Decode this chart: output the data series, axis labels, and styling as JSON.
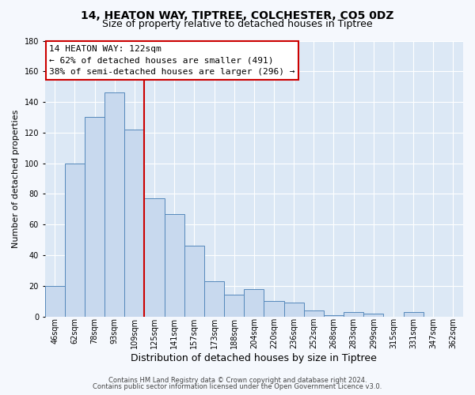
{
  "title": "14, HEATON WAY, TIPTREE, COLCHESTER, CO5 0DZ",
  "subtitle": "Size of property relative to detached houses in Tiptree",
  "xlabel": "Distribution of detached houses by size in Tiptree",
  "ylabel": "Number of detached properties",
  "bar_labels": [
    "46sqm",
    "62sqm",
    "78sqm",
    "93sqm",
    "109sqm",
    "125sqm",
    "141sqm",
    "157sqm",
    "173sqm",
    "188sqm",
    "204sqm",
    "220sqm",
    "236sqm",
    "252sqm",
    "268sqm",
    "283sqm",
    "299sqm",
    "315sqm",
    "331sqm",
    "347sqm",
    "362sqm"
  ],
  "bar_values": [
    20,
    100,
    130,
    146,
    122,
    77,
    67,
    46,
    23,
    14,
    18,
    10,
    9,
    4,
    1,
    3,
    2,
    0,
    3,
    0,
    0
  ],
  "bar_color": "#c8d9ee",
  "bar_edge_color": "#5588bb",
  "vline_color": "#cc0000",
  "annotation_line1": "14 HEATON WAY: 122sqm",
  "annotation_line2": "← 62% of detached houses are smaller (491)",
  "annotation_line3": "38% of semi-detached houses are larger (296) →",
  "annotation_box_facecolor": "#ffffff",
  "annotation_box_edgecolor": "#cc0000",
  "ylim": [
    0,
    180
  ],
  "yticks": [
    0,
    20,
    40,
    60,
    80,
    100,
    120,
    140,
    160,
    180
  ],
  "footer1": "Contains HM Land Registry data © Crown copyright and database right 2024.",
  "footer2": "Contains public sector information licensed under the Open Government Licence v3.0.",
  "plot_bg_color": "#dce8f5",
  "fig_bg_color": "#f5f8fd",
  "grid_color": "#ffffff",
  "title_fontsize": 10,
  "subtitle_fontsize": 9,
  "annotation_fontsize": 8,
  "footer_fontsize": 6,
  "xlabel_fontsize": 9,
  "ylabel_fontsize": 8,
  "tick_fontsize": 7
}
